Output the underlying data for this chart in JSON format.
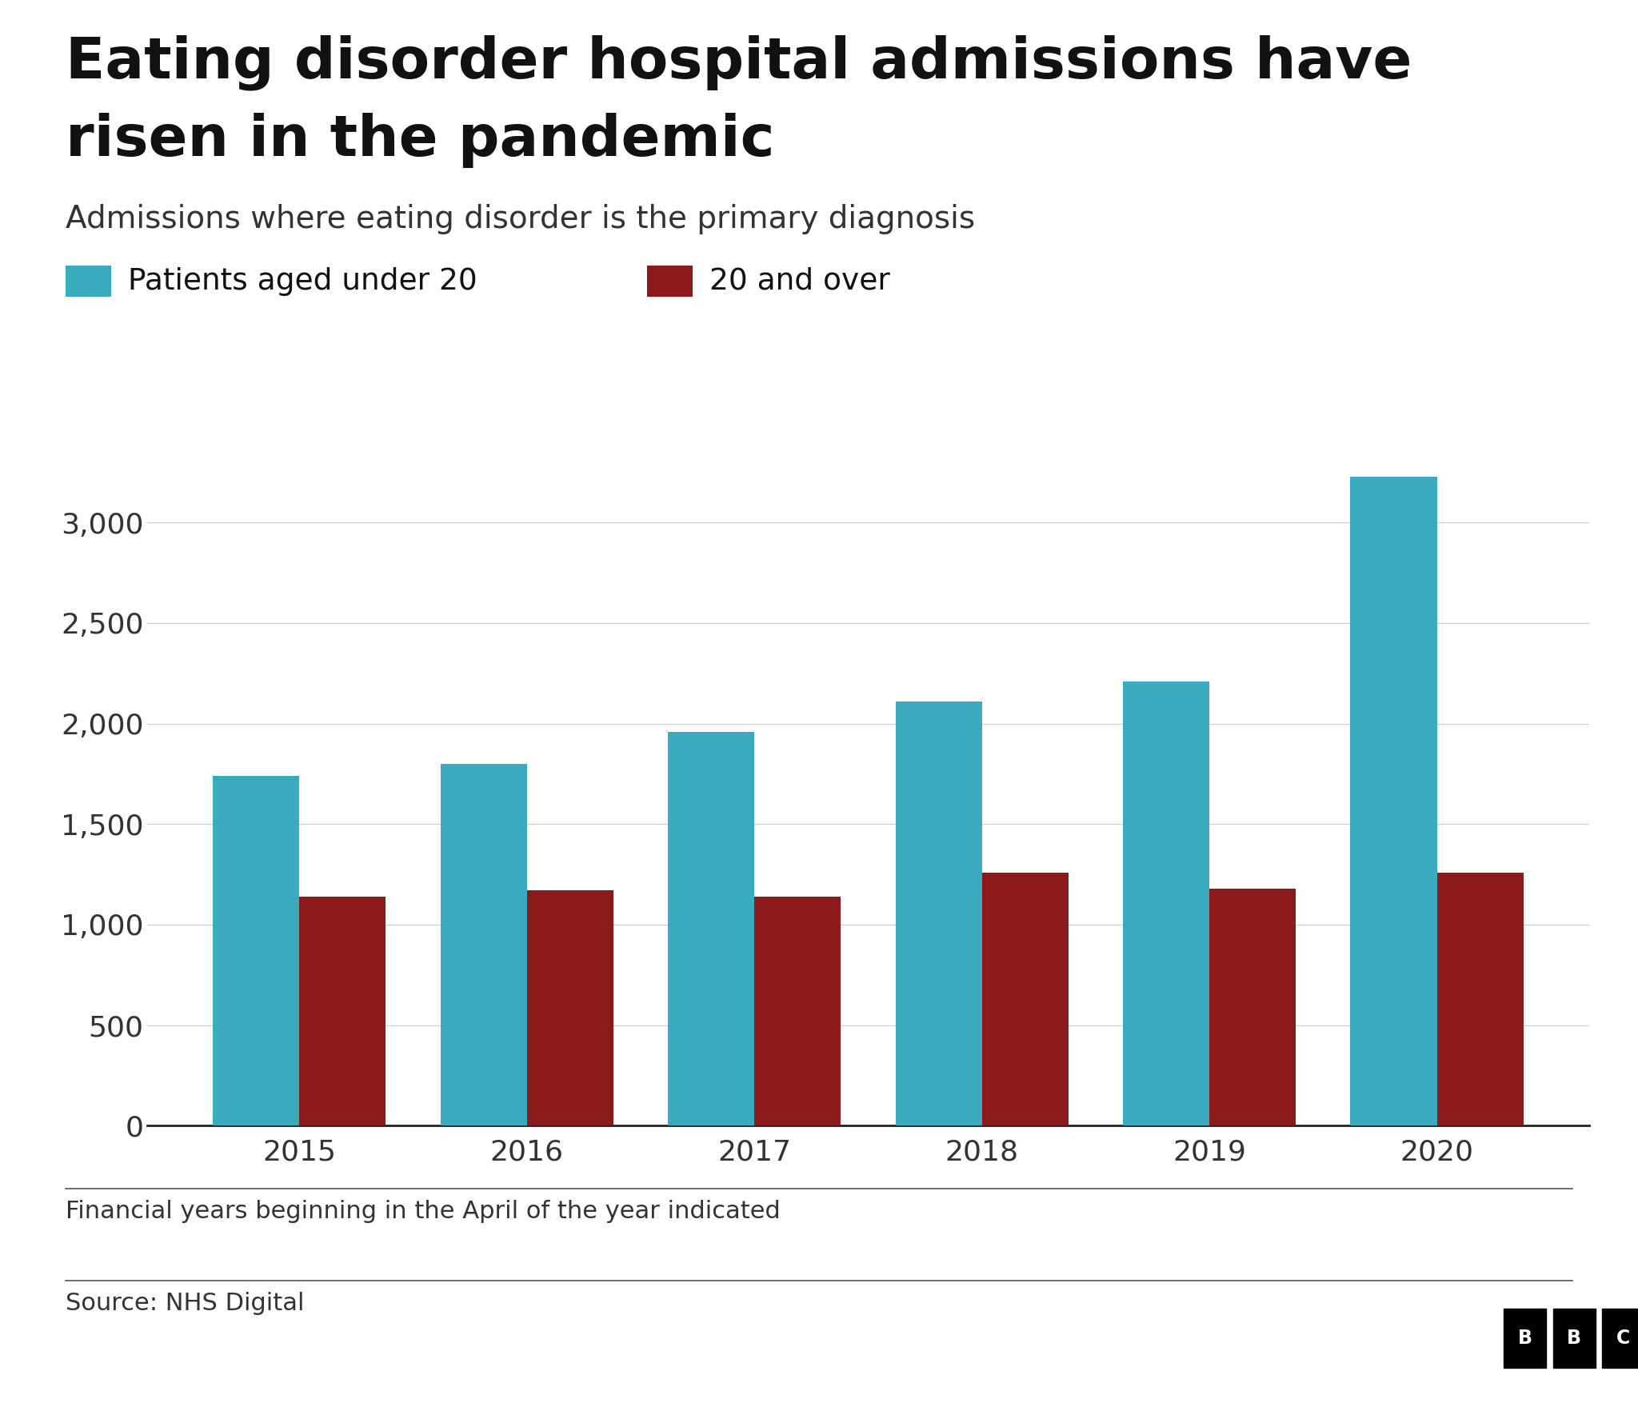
{
  "title_line1": "Eating disorder hospital admissions have",
  "title_line2": "risen in the pandemic",
  "subtitle": "Admissions where eating disorder is the primary diagnosis",
  "footnote": "Financial years beginning in the April of the year indicated",
  "source": "Source: NHS Digital",
  "years": [
    "2015",
    "2016",
    "2017",
    "2018",
    "2019",
    "2020"
  ],
  "under20": [
    1740,
    1800,
    1960,
    2110,
    2210,
    3230
  ],
  "over20": [
    1140,
    1170,
    1140,
    1260,
    1180,
    1260
  ],
  "color_under20": "#3aabbf",
  "color_over20": "#8b1a1a",
  "legend_under20": "Patients aged under 20",
  "legend_over20": "20 and over",
  "ylim": [
    0,
    3500
  ],
  "yticks": [
    0,
    500,
    1000,
    1500,
    2000,
    2500,
    3000
  ],
  "ytick_labels": [
    "0",
    "500",
    "1,000",
    "1,500",
    "2,000",
    "2,500",
    "3,000"
  ],
  "background_color": "#ffffff",
  "bar_width": 0.38,
  "title_fontsize": 52,
  "subtitle_fontsize": 28,
  "tick_fontsize": 26,
  "legend_fontsize": 27,
  "footnote_fontsize": 22,
  "source_fontsize": 22
}
